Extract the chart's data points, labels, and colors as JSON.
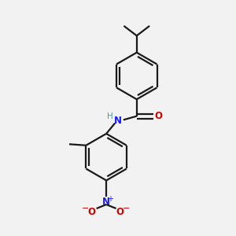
{
  "background_color": "#f2f2f2",
  "bond_color": "#1a1a1a",
  "N_color": "#1919ff",
  "O_color": "#cc0000",
  "NH_color": "#4d9999",
  "figsize": [
    3.0,
    3.0
  ],
  "dpi": 100,
  "xlim": [
    0,
    10
  ],
  "ylim": [
    0,
    10
  ]
}
